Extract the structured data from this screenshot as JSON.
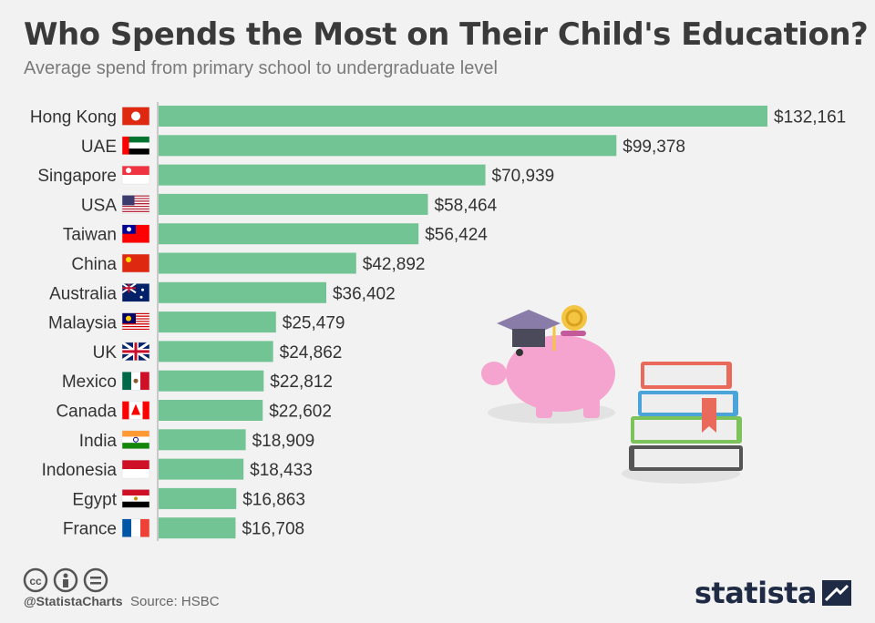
{
  "header": {
    "title": "Who Spends the Most on Their Child's Education?",
    "subtitle": "Average spend from primary school to undergraduate level"
  },
  "footer": {
    "handle": "@StatistaCharts",
    "source": "Source: HSBC",
    "logo_text": "statista"
  },
  "colors": {
    "bar": "#72c495",
    "text": "#333333",
    "axis": "#bbbbbb"
  },
  "chart_data": {
    "type": "bar",
    "orientation": "horizontal",
    "title": "Who Spends the Most on Their Child's Education?",
    "subtitle": "Average spend from primary school to undergraduate level",
    "categories": [
      "Hong Kong",
      "UAE",
      "Singapore",
      "USA",
      "Taiwan",
      "China",
      "Australia",
      "Malaysia",
      "UK",
      "Mexico",
      "Canada",
      "India",
      "Indonesia",
      "Egypt",
      "France"
    ],
    "values": [
      132161,
      99378,
      70939,
      58464,
      56424,
      42892,
      36402,
      25479,
      24862,
      22812,
      22602,
      18909,
      18433,
      16863,
      16708
    ],
    "value_labels": [
      "$132,161",
      "$99,378",
      "$70,939",
      "$58,464",
      "$56,424",
      "$42,892",
      "$36,402",
      "$25,479",
      "$24,862",
      "$22,812",
      "$22,602",
      "$18,909",
      "$18,433",
      "$16,863",
      "$16,708"
    ],
    "flags": [
      "hong-kong-flag",
      "uae-flag",
      "singapore-flag",
      "usa-flag",
      "taiwan-flag",
      "china-flag",
      "australia-flag",
      "malaysia-flag",
      "uk-flag",
      "mexico-flag",
      "canada-flag",
      "india-flag",
      "indonesia-flag",
      "egypt-flag",
      "france-flag"
    ],
    "xlim": [
      0,
      132161
    ],
    "grid": false,
    "legend": "none"
  }
}
